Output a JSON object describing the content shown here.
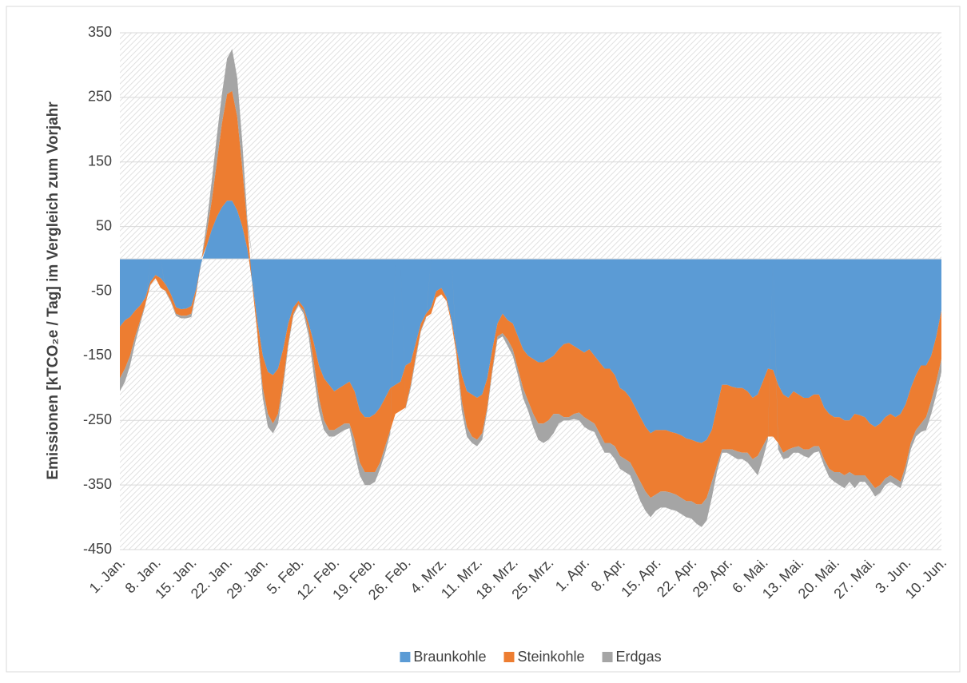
{
  "chart_data": {
    "type": "stacked_area",
    "y_label": "Emissionen [kTCO₂e / Tag] im Vergleich zum Vorjahr",
    "categories": [
      "1. Jan.",
      null,
      null,
      null,
      null,
      null,
      null,
      "8. Jan.",
      null,
      null,
      null,
      null,
      null,
      null,
      "15. Jan.",
      null,
      null,
      null,
      null,
      null,
      null,
      "22. Jan.",
      null,
      null,
      null,
      null,
      null,
      null,
      "29. Jan.",
      null,
      null,
      null,
      null,
      null,
      null,
      "5. Feb.",
      null,
      null,
      null,
      null,
      null,
      null,
      "12. Feb.",
      null,
      null,
      null,
      null,
      null,
      null,
      "19. Feb.",
      null,
      null,
      null,
      null,
      null,
      null,
      "26. Feb.",
      null,
      null,
      null,
      null,
      null,
      null,
      "4. Mrz.",
      null,
      null,
      null,
      null,
      null,
      null,
      "11. Mrz.",
      null,
      null,
      null,
      null,
      null,
      null,
      "18. Mrz.",
      null,
      null,
      null,
      null,
      null,
      null,
      "25. Mrz.",
      null,
      null,
      null,
      null,
      null,
      null,
      "1. Apr.",
      null,
      null,
      null,
      null,
      null,
      null,
      "8. Apr.",
      null,
      null,
      null,
      null,
      null,
      null,
      "15. Apr.",
      null,
      null,
      null,
      null,
      null,
      null,
      "22. Apr.",
      null,
      null,
      null,
      null,
      null,
      null,
      "29. Apr.",
      null,
      null,
      null,
      null,
      null,
      null,
      "6. Mai.",
      null,
      null,
      null,
      null,
      null,
      null,
      "13. Mai.",
      null,
      null,
      null,
      null,
      null,
      null,
      "20. Mai.",
      null,
      null,
      null,
      null,
      null,
      null,
      "27. Mai.",
      null,
      null,
      null,
      null,
      null,
      null,
      "3. Jun.",
      null,
      null,
      null,
      null,
      null,
      null,
      "10. Jun."
    ],
    "series": [
      {
        "name": "Braunkohle",
        "color": "#5b9bd5",
        "values": [
          -105,
          -95,
          -90,
          -80,
          -72,
          -60,
          -35,
          -25,
          -30,
          -40,
          -55,
          -75,
          -78,
          -77,
          -73,
          -45,
          -5,
          20,
          45,
          65,
          80,
          90,
          90,
          75,
          50,
          15,
          -40,
          -100,
          -150,
          -175,
          -180,
          -170,
          -140,
          -100,
          -75,
          -65,
          -75,
          -100,
          -130,
          -165,
          -185,
          -195,
          -205,
          -200,
          -195,
          -190,
          -205,
          -235,
          -245,
          -245,
          -240,
          -230,
          -215,
          -200,
          -195,
          -190,
          -165,
          -160,
          -130,
          -100,
          -85,
          -75,
          -50,
          -45,
          -60,
          -95,
          -140,
          -180,
          -205,
          -210,
          -215,
          -210,
          -185,
          -140,
          -100,
          -85,
          -95,
          -100,
          -120,
          -140,
          -150,
          -155,
          -160,
          -160,
          -155,
          -150,
          -140,
          -132,
          -130,
          -135,
          -140,
          -145,
          -140,
          -150,
          -160,
          -170,
          -170,
          -180,
          -200,
          -205,
          -215,
          -230,
          -245,
          -260,
          -270,
          -265,
          -265,
          -265,
          -268,
          -270,
          -273,
          -278,
          -280,
          -283,
          -285,
          -280,
          -265,
          -230,
          -195,
          -195,
          -198,
          -200,
          -200,
          -205,
          -215,
          -210,
          -190,
          -170,
          -172,
          -195,
          -210,
          -215,
          -205,
          -210,
          -215,
          -215,
          -210,
          -210,
          -230,
          -240,
          -245,
          -245,
          -250,
          -250,
          -240,
          -242,
          -245,
          -255,
          -260,
          -255,
          -245,
          -240,
          -245,
          -240,
          -225,
          -200,
          -180,
          -165,
          -165,
          -150,
          -120,
          -80
        ]
      },
      {
        "name": "Steinkohle",
        "color": "#ed7d31",
        "values": [
          -80,
          -75,
          -60,
          -40,
          -23,
          -10,
          -5,
          -5,
          -15,
          -10,
          -10,
          -10,
          -10,
          -11,
          -12,
          -5,
          0,
          20,
          45,
          85,
          130,
          165,
          170,
          145,
          90,
          35,
          -5,
          -20,
          -50,
          -65,
          -75,
          -70,
          -50,
          -30,
          -10,
          -5,
          -5,
          -10,
          -30,
          -50,
          -65,
          -70,
          -60,
          -60,
          -60,
          -65,
          -75,
          -80,
          -85,
          -85,
          -90,
          -85,
          -75,
          -65,
          -45,
          -45,
          -65,
          -35,
          -20,
          -10,
          -5,
          -10,
          -10,
          -10,
          -5,
          -5,
          -10,
          -40,
          -55,
          -65,
          -65,
          -60,
          -45,
          -30,
          -20,
          -30,
          -30,
          -40,
          -50,
          -60,
          -70,
          -85,
          -95,
          -95,
          -95,
          -90,
          -100,
          -113,
          -115,
          -105,
          -98,
          -100,
          -110,
          -105,
          -110,
          -115,
          -115,
          -110,
          -105,
          -105,
          -100,
          -100,
          -100,
          -100,
          -100,
          -100,
          -95,
          -95,
          -94,
          -95,
          -97,
          -97,
          -95,
          -97,
          -95,
          -90,
          -80,
          -90,
          -100,
          -100,
          -97,
          -98,
          -100,
          -95,
          -95,
          -95,
          -100,
          -105,
          -103,
          -90,
          -90,
          -80,
          -87,
          -80,
          -80,
          -80,
          -80,
          -80,
          -80,
          -85,
          -85,
          -85,
          -85,
          -80,
          -95,
          -93,
          -90,
          -90,
          -95,
          -95,
          -95,
          -95,
          -95,
          -105,
          -95,
          -85,
          -85,
          -90,
          -80,
          -70,
          -70,
          -75
        ]
      },
      {
        "name": "Erdgas",
        "color": "#a5a5a5",
        "values": [
          -20,
          -20,
          -15,
          -10,
          -5,
          -2,
          0,
          0,
          0,
          -2,
          -2,
          -3,
          -4,
          -4,
          -5,
          -2,
          0,
          15,
          30,
          40,
          45,
          55,
          65,
          60,
          40,
          10,
          0,
          -5,
          -15,
          -20,
          -15,
          -15,
          -10,
          -5,
          -3,
          -2,
          -5,
          -10,
          -20,
          -20,
          -15,
          -10,
          -10,
          -10,
          -10,
          -7,
          -20,
          -20,
          -20,
          -20,
          -15,
          -10,
          -10,
          -5,
          0,
          0,
          -2,
          -5,
          -5,
          -2,
          -2,
          0,
          0,
          0,
          0,
          0,
          -5,
          -15,
          -15,
          -10,
          -10,
          -10,
          -5,
          -5,
          -5,
          -5,
          -10,
          -10,
          -10,
          -15,
          -15,
          -20,
          -25,
          -30,
          -30,
          -30,
          -15,
          -5,
          -5,
          -8,
          -12,
          -15,
          -15,
          -13,
          -15,
          -15,
          -15,
          -20,
          -20,
          -20,
          -20,
          -25,
          -30,
          -30,
          -30,
          -25,
          -25,
          -25,
          -26,
          -25,
          -25,
          -25,
          -27,
          -30,
          -35,
          -35,
          -25,
          -10,
          -5,
          -5,
          -10,
          -12,
          -10,
          -15,
          -15,
          -30,
          -20,
          -5,
          0,
          -10,
          -10,
          -13,
          -8,
          -10,
          -10,
          -13,
          -10,
          -8,
          -10,
          -13,
          -15,
          -20,
          -20,
          -15,
          -20,
          -10,
          -10,
          -10,
          -13,
          -12,
          -10,
          -10,
          -10,
          -10,
          -10,
          -10,
          -10,
          -13,
          -20,
          -20,
          -20,
          -20
        ]
      }
    ],
    "ylim": [
      -450,
      350
    ],
    "yticks": [
      -450,
      -350,
      -250,
      -150,
      -50,
      50,
      150,
      250,
      350
    ],
    "grid": true,
    "legend": "bottom"
  }
}
